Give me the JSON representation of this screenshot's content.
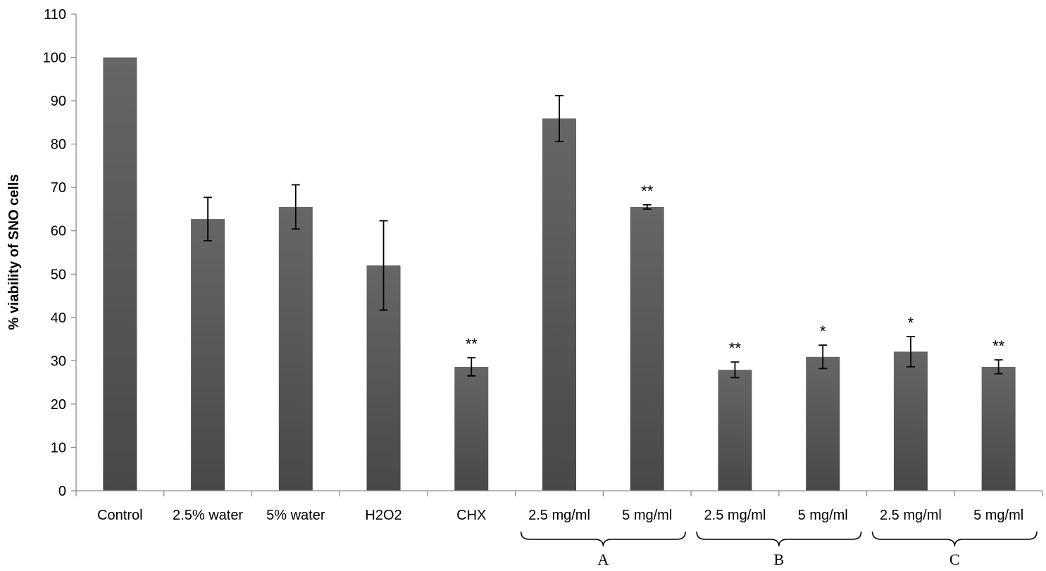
{
  "chart_data": {
    "type": "bar",
    "title": "",
    "xlabel": "",
    "ylabel": "% viability of SNO cells",
    "ylim": [
      0,
      110
    ],
    "yticks": [
      0,
      10,
      20,
      30,
      40,
      50,
      60,
      70,
      80,
      90,
      100,
      110
    ],
    "grid": false,
    "legend": "none",
    "bar_color": "#575757",
    "categories": [
      "Control",
      "2.5% water",
      "5% water",
      "H2O2",
      "CHX",
      "2.5 mg/ml",
      "5 mg/ml",
      "2.5 mg/ml",
      "5 mg/ml",
      "2.5 mg/ml",
      "5 mg/ml"
    ],
    "values": [
      100,
      62.7,
      65.5,
      52,
      28.6,
      85.9,
      65.5,
      27.9,
      30.9,
      32.1,
      28.6
    ],
    "errors": [
      0,
      5,
      5.1,
      10.3,
      2.1,
      5.3,
      0.5,
      1.8,
      2.7,
      3.5,
      1.6
    ],
    "significance": [
      "",
      "",
      "",
      "",
      "**",
      "",
      "**",
      "**",
      "*",
      "*",
      "**"
    ],
    "groups": [
      {
        "label": "A",
        "from": 5,
        "to": 6
      },
      {
        "label": "B",
        "from": 7,
        "to": 8
      },
      {
        "label": "C",
        "from": 9,
        "to": 10
      }
    ]
  }
}
